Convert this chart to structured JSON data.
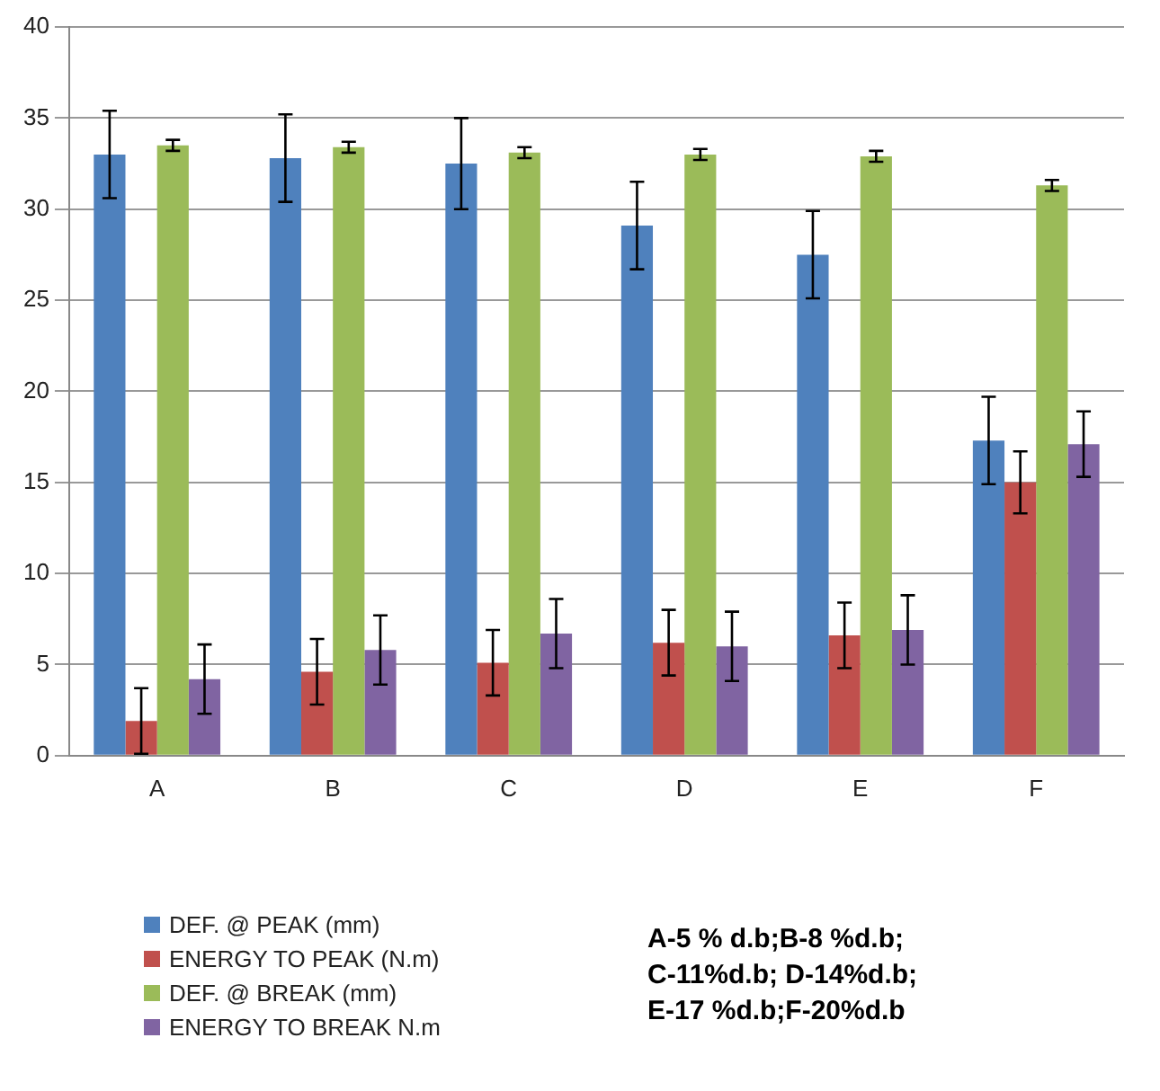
{
  "chart_data": {
    "type": "bar",
    "categories": [
      "A",
      "B",
      "C",
      "D",
      "E",
      "F"
    ],
    "series": [
      {
        "name": "DEF. @ PEAK (mm)",
        "color": "#4f81bd",
        "values": [
          33,
          32.8,
          32.5,
          29.1,
          27.5,
          17.3
        ],
        "errors": [
          2.4,
          2.4,
          2.5,
          2.4,
          2.4,
          2.4
        ]
      },
      {
        "name": "ENERGY TO PEAK (N.m)",
        "color": "#c0504d",
        "values": [
          1.9,
          4.6,
          5.1,
          6.2,
          6.6,
          15
        ],
        "errors": [
          1.8,
          1.8,
          1.8,
          1.8,
          1.8,
          1.7
        ]
      },
      {
        "name": "DEF. @ BREAK (mm)",
        "color": "#9bbb59",
        "values": [
          33.5,
          33.4,
          33.1,
          33,
          32.9,
          31.3
        ],
        "errors": [
          0.3,
          0.3,
          0.3,
          0.3,
          0.3,
          0.3
        ]
      },
      {
        "name": "ENERGY TO BREAK  N.m",
        "color": "#8064a2",
        "values": [
          4.2,
          5.8,
          6.7,
          6,
          6.9,
          17.1
        ],
        "errors": [
          1.9,
          1.9,
          1.9,
          1.9,
          1.9,
          1.8
        ]
      }
    ],
    "ylim": [
      0,
      40
    ],
    "yticks": [
      0,
      5,
      10,
      15,
      20,
      25,
      30,
      35,
      40
    ],
    "grid": "y",
    "legend": "bottom left",
    "annotations": [
      "A-5 % d.b;B-8 %d.b;\nC-11%d.b; D-14%d.b;\nE-17 %d.b;F-20%d.b"
    ]
  }
}
